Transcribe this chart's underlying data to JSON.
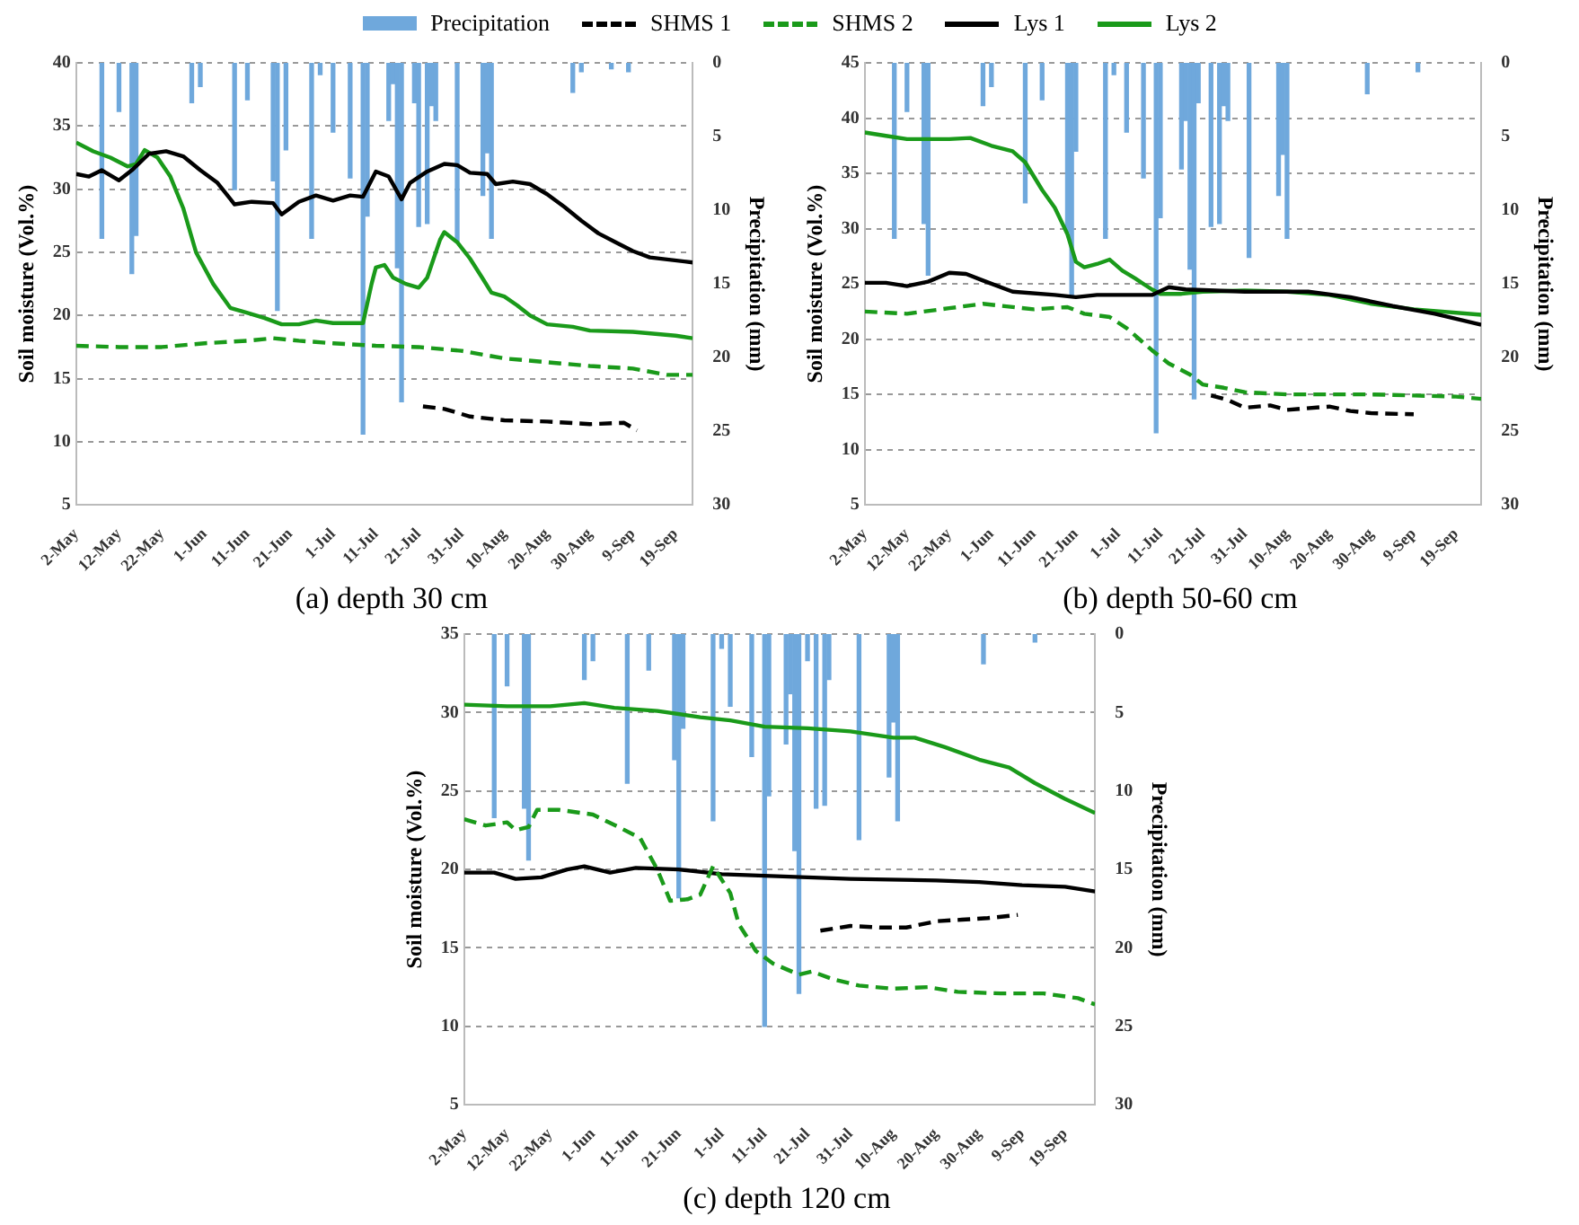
{
  "chart_data": [
    {
      "type": "line",
      "title": "(a) depth 30 cm",
      "ylabel": "Soil moisture (Vol.%)",
      "y2label": "Precipitation (mm)",
      "legend": "top",
      "grid": "y",
      "xlim": [
        "--05-02",
        "--09-23"
      ],
      "xticks": [
        {
          "value": "--05-02",
          "label": "2-May"
        },
        {
          "value": "--05-12",
          "label": "12-May"
        },
        {
          "value": "--05-22",
          "label": "22-May"
        },
        {
          "value": "--06-01",
          "label": "1-Jun"
        },
        {
          "value": "--06-11",
          "label": "11-Jun"
        },
        {
          "value": "--06-21",
          "label": "21-Jun"
        },
        {
          "value": "--07-01",
          "label": "1-Jul"
        },
        {
          "value": "--07-11",
          "label": "11-Jul"
        },
        {
          "value": "--07-21",
          "label": "21-Jul"
        },
        {
          "value": "--07-31",
          "label": "31-Jul"
        },
        {
          "value": "--08-10",
          "label": "10-Aug"
        },
        {
          "value": "--08-20",
          "label": "20-Aug"
        },
        {
          "value": "--08-30",
          "label": "30-Aug"
        },
        {
          "value": "--09-09",
          "label": "9-Sep"
        },
        {
          "value": "--09-19",
          "label": "19-Sep"
        }
      ],
      "ylim": [
        5,
        40
      ],
      "yticks": [
        5,
        10,
        15,
        20,
        25,
        30,
        35,
        40
      ],
      "y2lim": [
        30,
        0
      ],
      "y2ticks": [
        0,
        5,
        10,
        15,
        20,
        25,
        30
      ],
      "series": [
        {
          "name": "Precipitation",
          "type": "bar",
          "axis": "y2",
          "color": "#6fa8dc",
          "x": [
            "--05-08",
            "--05-12",
            "--05-15",
            "--05-16",
            "--05-29",
            "--05-31",
            "--06-08",
            "--06-11",
            "--06-17",
            "--06-18",
            "--06-20",
            "--06-26",
            "--06-28",
            "--07-01",
            "--07-05",
            "--07-08",
            "--07-09",
            "--07-14",
            "--07-15",
            "--07-16",
            "--07-17",
            "--07-20",
            "--07-21",
            "--07-23",
            "--07-24",
            "--07-25",
            "--07-30",
            "--08-05",
            "--08-06",
            "--08-07",
            "--08-26",
            "--08-28",
            "--09-04",
            "--09-08"
          ],
          "values": [
            11.9,
            3.3,
            14.3,
            11.7,
            2.7,
            1.6,
            8.6,
            2.5,
            8.0,
            16.8,
            5.9,
            11.9,
            0.8,
            4.7,
            7.8,
            25.2,
            10.4,
            3.9,
            1.4,
            13.9,
            23.0,
            2.7,
            11.1,
            10.9,
            2.9,
            3.9,
            12.1,
            9.0,
            6.1,
            11.9,
            2.0,
            0.6,
            0.4,
            0.6
          ]
        },
        {
          "name": "SHMS 1",
          "line_style": "dashed",
          "color": "#000000",
          "x": [
            "--07-22",
            "--07-27",
            "--08-02",
            "--08-10",
            "--08-20",
            "--08-30",
            "--09-07",
            "--09-10"
          ],
          "values": [
            12.8,
            12.6,
            12.0,
            11.7,
            11.6,
            11.4,
            11.5,
            10.9
          ]
        },
        {
          "name": "SHMS 2",
          "line_style": "dashed",
          "color": "#1a9a1a",
          "x": [
            "--05-02",
            "--05-12",
            "--05-22",
            "--06-01",
            "--06-11",
            "--06-17",
            "--06-23",
            "--07-01",
            "--07-11",
            "--07-21",
            "--07-31",
            "--08-10",
            "--08-20",
            "--08-30",
            "--09-09",
            "--09-17",
            "--09-23"
          ],
          "values": [
            17.6,
            17.5,
            17.5,
            17.8,
            18.0,
            18.2,
            18.0,
            17.8,
            17.6,
            17.5,
            17.2,
            16.6,
            16.3,
            16.0,
            15.8,
            15.3,
            15.3
          ]
        },
        {
          "name": "Lys 1",
          "line_style": "solid",
          "color": "#000000",
          "x": [
            "--05-02",
            "--05-05",
            "--05-08",
            "--05-12",
            "--05-15",
            "--05-19",
            "--05-23",
            "--05-27",
            "--05-31",
            "--06-04",
            "--06-08",
            "--06-12",
            "--06-17",
            "--06-19",
            "--06-23",
            "--06-27",
            "--07-01",
            "--07-05",
            "--07-08",
            "--07-11",
            "--07-14",
            "--07-17",
            "--07-19",
            "--07-23",
            "--07-27",
            "--07-30",
            "--08-02",
            "--08-06",
            "--08-08",
            "--08-12",
            "--08-16",
            "--08-20",
            "--08-24",
            "--08-28",
            "--09-01",
            "--09-05",
            "--09-09",
            "--09-13",
            "--09-23"
          ],
          "values": [
            31.2,
            31.0,
            31.5,
            30.7,
            31.5,
            32.8,
            33.0,
            32.6,
            31.5,
            30.5,
            28.8,
            29.0,
            28.9,
            28.0,
            29.0,
            29.5,
            29.1,
            29.5,
            29.4,
            31.4,
            31.0,
            29.2,
            30.5,
            31.4,
            32.0,
            31.9,
            31.3,
            31.2,
            30.4,
            30.6,
            30.4,
            29.6,
            28.6,
            27.5,
            26.5,
            25.8,
            25.1,
            24.6,
            24.2
          ]
        },
        {
          "name": "Lys 2",
          "line_style": "solid",
          "color": "#1a9a1a",
          "x": [
            "--05-02",
            "--05-06",
            "--05-10",
            "--05-14",
            "--05-16",
            "--05-18",
            "--05-21",
            "--05-24",
            "--05-27",
            "--05-30",
            "--06-03",
            "--06-07",
            "--06-11",
            "--06-15",
            "--06-19",
            "--06-23",
            "--06-27",
            "--07-01",
            "--07-08",
            "--07-10",
            "--07-11",
            "--07-13",
            "--07-15",
            "--07-18",
            "--07-21",
            "--07-23",
            "--07-26",
            "--07-27",
            "--07-30",
            "--08-02",
            "--08-05",
            "--08-07",
            "--08-10",
            "--08-13",
            "--08-16",
            "--08-20",
            "--08-26",
            "--08-30",
            "--09-09",
            "--09-19",
            "--09-23"
          ],
          "values": [
            33.7,
            33.0,
            32.5,
            31.8,
            32.0,
            33.1,
            32.5,
            31.0,
            28.5,
            25.0,
            22.5,
            20.6,
            20.2,
            19.8,
            19.3,
            19.3,
            19.6,
            19.4,
            19.4,
            22.5,
            23.8,
            24.0,
            23.0,
            22.5,
            22.2,
            23.0,
            26.0,
            26.6,
            25.8,
            24.5,
            22.9,
            21.8,
            21.5,
            20.8,
            20.0,
            19.3,
            19.1,
            18.8,
            18.7,
            18.4,
            18.2
          ]
        }
      ]
    },
    {
      "type": "line",
      "title": "(b) depth 50-60 cm",
      "ylabel": "Soil moisture (Vol.%)",
      "y2label": "Precipitation (mm)",
      "grid": "y",
      "xlim": [
        "--05-02",
        "--09-25"
      ],
      "xticks": [
        {
          "value": "--05-02",
          "label": "2-May"
        },
        {
          "value": "--05-12",
          "label": "12-May"
        },
        {
          "value": "--05-22",
          "label": "22-May"
        },
        {
          "value": "--06-01",
          "label": "1-Jun"
        },
        {
          "value": "--06-11",
          "label": "11-Jun"
        },
        {
          "value": "--06-21",
          "label": "21-Jun"
        },
        {
          "value": "--07-01",
          "label": "1-Jul"
        },
        {
          "value": "--07-11",
          "label": "11-Jul"
        },
        {
          "value": "--07-21",
          "label": "21-Jul"
        },
        {
          "value": "--07-31",
          "label": "31-Jul"
        },
        {
          "value": "--08-10",
          "label": "10-Aug"
        },
        {
          "value": "--08-20",
          "label": "20-Aug"
        },
        {
          "value": "--08-30",
          "label": "30-Aug"
        },
        {
          "value": "--09-09",
          "label": "9-Sep"
        },
        {
          "value": "--09-19",
          "label": "19-Sep"
        }
      ],
      "ylim": [
        5,
        45
      ],
      "yticks": [
        5,
        10,
        15,
        20,
        25,
        30,
        35,
        40,
        45
      ],
      "y2lim": [
        30,
        0
      ],
      "y2ticks": [
        0,
        5,
        10,
        15,
        20,
        25,
        30
      ],
      "series": [
        {
          "type": "bar",
          "axis": "y2",
          "color": "#6fa8dc",
          "x": [
            "--05-09",
            "--05-12",
            "--05-16",
            "--05-17",
            "--05-30",
            "--06-01",
            "--06-09",
            "--06-13",
            "--06-19",
            "--06-20",
            "--06-21",
            "--06-28",
            "--06-30",
            "--07-03",
            "--07-07",
            "--07-10",
            "--07-11",
            "--07-16",
            "--07-17",
            "--07-18",
            "--07-19",
            "--07-20",
            "--07-23",
            "--07-25",
            "--07-26",
            "--07-27",
            "--08-01",
            "--08-08",
            "--08-09",
            "--08-10",
            "--08-29",
            "--09-10"
          ],
          "values": [
            11.9,
            3.3,
            10.9,
            14.4,
            2.9,
            1.6,
            9.5,
            2.5,
            11.5,
            15.8,
            6.0,
            11.9,
            0.8,
            4.7,
            7.8,
            25.1,
            10.5,
            7.2,
            3.9,
            14.0,
            22.8,
            2.7,
            11.1,
            10.9,
            2.9,
            3.9,
            13.2,
            9.0,
            6.2,
            11.9,
            2.1,
            0.6
          ]
        },
        {
          "line_style": "dashed",
          "color": "#000000",
          "x": [
            "--07-23",
            "--07-27",
            "--07-31",
            "--08-06",
            "--08-10",
            "--08-20",
            "--08-25",
            "--08-30",
            "--09-09"
          ],
          "values": [
            14.9,
            14.5,
            13.8,
            14.0,
            13.6,
            13.9,
            13.5,
            13.3,
            13.2
          ]
        },
        {
          "line_style": "dashed",
          "color": "#1a9a1a",
          "x": [
            "--05-02",
            "--05-12",
            "--05-22",
            "--05-30",
            "--06-11",
            "--06-19",
            "--06-23",
            "--06-29",
            "--07-03",
            "--07-09",
            "--07-13",
            "--07-18",
            "--07-21",
            "--07-26",
            "--07-31",
            "--08-10",
            "--08-20",
            "--08-30",
            "--09-09",
            "--09-19",
            "--09-25"
          ],
          "values": [
            22.5,
            22.3,
            22.8,
            23.2,
            22.7,
            22.9,
            22.3,
            22.0,
            21.0,
            19.0,
            17.8,
            16.8,
            15.9,
            15.6,
            15.2,
            15.0,
            15.0,
            15.0,
            14.9,
            14.8,
            14.6
          ]
        },
        {
          "line_style": "solid",
          "color": "#000000",
          "x": [
            "--05-02",
            "--05-07",
            "--05-12",
            "--05-17",
            "--05-22",
            "--05-26",
            "--05-30",
            "--06-06",
            "--06-16",
            "--06-21",
            "--06-26",
            "--07-09",
            "--07-13",
            "--07-17",
            "--07-31",
            "--08-15",
            "--08-25",
            "--09-04",
            "--09-14",
            "--09-25"
          ],
          "values": [
            25.1,
            25.1,
            24.8,
            25.2,
            26.0,
            25.9,
            25.3,
            24.3,
            24.0,
            23.8,
            24.0,
            24.0,
            24.7,
            24.5,
            24.3,
            24.3,
            23.8,
            23.0,
            22.3,
            21.3
          ]
        },
        {
          "line_style": "solid",
          "color": "#1a9a1a",
          "x": [
            "--05-02",
            "--05-07",
            "--05-12",
            "--05-22",
            "--05-27",
            "--06-01",
            "--06-06",
            "--06-09",
            "--06-13",
            "--06-16",
            "--06-19",
            "--06-21",
            "--06-23",
            "--06-26",
            "--06-29",
            "--07-02",
            "--07-05",
            "--07-09",
            "--07-11",
            "--07-16",
            "--07-21",
            "--07-31",
            "--08-10",
            "--08-20",
            "--08-30",
            "--09-09",
            "--09-25"
          ],
          "values": [
            38.7,
            38.4,
            38.1,
            38.1,
            38.2,
            37.5,
            37.0,
            36.0,
            33.5,
            31.9,
            29.5,
            27.0,
            26.5,
            26.8,
            27.2,
            26.2,
            25.5,
            24.5,
            24.1,
            24.1,
            24.3,
            24.4,
            24.3,
            24.0,
            23.2,
            22.7,
            22.2
          ]
        }
      ]
    },
    {
      "type": "line",
      "title": "(c) depth 120 cm",
      "ylabel": "Soil moisture (Vol.%)",
      "y2label": "Precipitation (mm)",
      "grid": "y",
      "xlim": [
        "--05-02",
        "--09-26"
      ],
      "xticks": [
        {
          "value": "--05-02",
          "label": "2-May"
        },
        {
          "value": "--05-12",
          "label": "12-May"
        },
        {
          "value": "--05-22",
          "label": "22-May"
        },
        {
          "value": "--06-01",
          "label": "1-Jun"
        },
        {
          "value": "--06-11",
          "label": "11-Jun"
        },
        {
          "value": "--06-21",
          "label": "21-Jun"
        },
        {
          "value": "--07-01",
          "label": "1-Jul"
        },
        {
          "value": "--07-11",
          "label": "11-Jul"
        },
        {
          "value": "--07-21",
          "label": "21-Jul"
        },
        {
          "value": "--07-31",
          "label": "31-Jul"
        },
        {
          "value": "--08-10",
          "label": "10-Aug"
        },
        {
          "value": "--08-20",
          "label": "20-Aug"
        },
        {
          "value": "--08-30",
          "label": "30-Aug"
        },
        {
          "value": "--09-09",
          "label": "9-Sep"
        },
        {
          "value": "--09-19",
          "label": "19-Sep"
        }
      ],
      "ylim": [
        5,
        35
      ],
      "yticks": [
        5,
        10,
        15,
        20,
        25,
        30,
        35
      ],
      "y2lim": [
        30,
        0
      ],
      "y2ticks": [
        0,
        5,
        10,
        15,
        20,
        25,
        30
      ],
      "series": [
        {
          "type": "bar",
          "axis": "y2",
          "color": "#6fa8dc",
          "x": [
            "--05-09",
            "--05-12",
            "--05-16",
            "--05-17",
            "--05-30",
            "--06-01",
            "--06-09",
            "--06-14",
            "--06-20",
            "--06-21",
            "--06-22",
            "--06-29",
            "--07-01",
            "--07-03",
            "--07-08",
            "--07-11",
            "--07-12",
            "--07-16",
            "--07-17",
            "--07-18",
            "--07-19",
            "--07-21",
            "--07-23",
            "--07-25",
            "--07-26",
            "--08-02",
            "--08-09",
            "--08-10",
            "--08-11",
            "--08-31",
            "--09-12"
          ],
          "values": [
            11.7,
            3.3,
            11.1,
            14.4,
            2.9,
            1.7,
            9.5,
            2.3,
            8.0,
            16.8,
            6.0,
            11.9,
            0.9,
            4.6,
            7.8,
            25.0,
            10.3,
            7.0,
            3.8,
            13.8,
            22.9,
            1.7,
            11.1,
            10.9,
            2.9,
            13.1,
            9.1,
            5.6,
            11.9,
            1.9,
            0.5
          ]
        },
        {
          "line_style": "dashed",
          "color": "#000000",
          "x": [
            "--07-24",
            "--07-31",
            "--08-07",
            "--08-13",
            "--08-20",
            "--08-26",
            "--09-01",
            "--09-08"
          ],
          "values": [
            16.1,
            16.4,
            16.3,
            16.3,
            16.7,
            16.8,
            16.9,
            17.1
          ]
        },
        {
          "line_style": "dashed",
          "color": "#1a9a1a",
          "x": [
            "--05-02",
            "--05-07",
            "--05-12",
            "--05-14",
            "--05-17",
            "--05-19",
            "--05-24",
            "--06-01",
            "--06-07",
            "--06-12",
            "--06-16",
            "--06-19",
            "--06-23",
            "--06-26",
            "--06-29",
            "--07-03",
            "--07-05",
            "--07-09",
            "--07-13",
            "--07-19",
            "--07-22",
            "--07-27",
            "--08-02",
            "--08-10",
            "--08-18",
            "--08-25",
            "--09-04",
            "--09-14",
            "--09-22",
            "--09-26"
          ],
          "values": [
            23.2,
            22.8,
            23.0,
            22.5,
            22.7,
            23.8,
            23.8,
            23.5,
            22.7,
            22.0,
            20.0,
            18.0,
            18.1,
            18.4,
            20.2,
            18.5,
            16.5,
            14.8,
            14.0,
            13.3,
            13.5,
            13.0,
            12.6,
            12.4,
            12.5,
            12.2,
            12.1,
            12.1,
            11.8,
            11.4
          ]
        },
        {
          "line_style": "solid",
          "color": "#000000",
          "x": [
            "--05-02",
            "--05-09",
            "--05-14",
            "--05-20",
            "--05-26",
            "--05-30",
            "--06-05",
            "--06-11",
            "--06-21",
            "--07-01",
            "--07-11",
            "--07-31",
            "--08-20",
            "--08-30",
            "--09-09",
            "--09-19",
            "--09-26"
          ],
          "values": [
            19.8,
            19.8,
            19.4,
            19.5,
            20.0,
            20.2,
            19.8,
            20.1,
            20.0,
            19.7,
            19.6,
            19.4,
            19.3,
            19.2,
            19.0,
            18.9,
            18.6
          ]
        },
        {
          "line_style": "solid",
          "color": "#1a9a1a",
          "x": [
            "--05-02",
            "--05-12",
            "--05-22",
            "--05-30",
            "--06-06",
            "--06-16",
            "--06-26",
            "--07-03",
            "--07-11",
            "--07-21",
            "--07-31",
            "--08-10",
            "--08-15",
            "--08-22",
            "--08-30",
            "--09-06",
            "--09-12",
            "--09-19",
            "--09-26"
          ],
          "values": [
            30.5,
            30.4,
            30.4,
            30.6,
            30.3,
            30.1,
            29.7,
            29.5,
            29.1,
            29.0,
            28.8,
            28.4,
            28.4,
            27.8,
            27.0,
            26.5,
            25.5,
            24.5,
            23.6
          ]
        }
      ]
    }
  ]
}
